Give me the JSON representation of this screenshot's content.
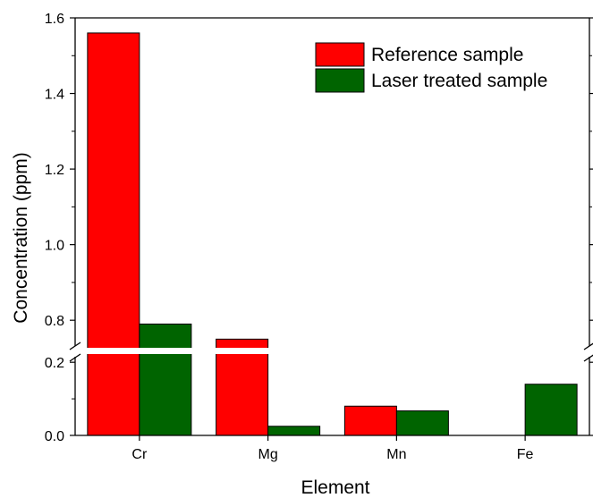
{
  "chart_data": {
    "type": "bar",
    "xlabel": "Element",
    "ylabel": "Concentration (ppm)",
    "categories": [
      "Cr",
      "Mg",
      "Mn",
      "Fe"
    ],
    "series": [
      {
        "name": "Reference sample",
        "color": "#ff0000",
        "values": [
          1.56,
          0.75,
          0.08,
          0.0
        ]
      },
      {
        "name": "Laser treated sample",
        "color": "#006400",
        "values": [
          0.79,
          0.025,
          0.067,
          0.14
        ]
      }
    ],
    "y_axis_break": {
      "lower_range": [
        0.0,
        0.22
      ],
      "upper_range": [
        0.72,
        1.6
      ],
      "lower_ticks": [
        "0.0",
        "0.2"
      ],
      "upper_ticks": [
        "0.8",
        "1.0",
        "1.2",
        "1.4",
        "1.6"
      ]
    },
    "legend_position": "top-right",
    "grid": false
  }
}
